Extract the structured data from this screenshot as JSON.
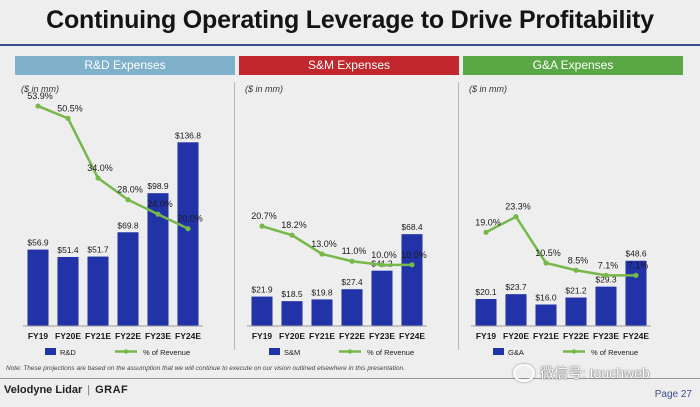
{
  "title": "Continuing Operating Leverage to Drive Profitability",
  "chart_data": [
    {
      "type": "bar",
      "header": "R&D Expenses",
      "header_color": "#7fb1cb",
      "unit": "($ in mm)",
      "categories": [
        "FY19",
        "FY20E",
        "FY21E",
        "FY22E",
        "FY23E",
        "FY24E"
      ],
      "bar_values": [
        56.9,
        51.4,
        51.7,
        69.8,
        98.9,
        136.8
      ],
      "bar_labels": [
        "$56.9",
        "$51.4",
        "$51.7",
        "$69.8",
        "$98.9",
        "$136.8"
      ],
      "pct_values": [
        53.9,
        50.5,
        34.0,
        28.0,
        24.0,
        20.0
      ],
      "pct_labels": [
        "53.9%",
        "50.5%",
        "34.0%",
        "28.0%",
        "24.0%",
        "20.0%"
      ],
      "bar_series_name": "R&D",
      "line_series_name": "% of Revenue",
      "bar_color": "#2233a8",
      "line_color": "#77b84a",
      "bar_max": 140,
      "pct_range": [
        0,
        60
      ]
    },
    {
      "type": "bar",
      "header": "S&M Expenses",
      "header_color": "#c1272d",
      "unit": "($ in mm)",
      "categories": [
        "FY19",
        "FY20E",
        "FY21E",
        "FY22E",
        "FY23E",
        "FY24E"
      ],
      "bar_values": [
        21.9,
        18.5,
        19.8,
        27.4,
        41.2,
        68.4
      ],
      "bar_labels": [
        "$21.9",
        "$18.5",
        "$19.8",
        "$27.4",
        "$41.2",
        "$68.4"
      ],
      "pct_values": [
        20.7,
        18.2,
        13.0,
        11.0,
        10.0,
        10.0
      ],
      "pct_labels": [
        "20.7%",
        "18.2%",
        "13.0%",
        "11.0%",
        "10.0%",
        "10.0%"
      ],
      "bar_series_name": "S&M",
      "line_series_name": "% of Revenue",
      "bar_color": "#2233a8",
      "line_color": "#77b84a",
      "bar_max": 140,
      "pct_range": [
        0,
        60
      ]
    },
    {
      "type": "bar",
      "header": "G&A Expenses",
      "header_color": "#5aa845",
      "unit": "($ in mm)",
      "categories": [
        "FY19",
        "FY20E",
        "FY21E",
        "FY22E",
        "FY23E",
        "FY24E"
      ],
      "bar_values": [
        20.1,
        23.7,
        16.0,
        21.2,
        29.3,
        48.6
      ],
      "bar_labels": [
        "$20.1",
        "$23.7",
        "$16.0",
        "$21.2",
        "$29.3",
        "$48.6"
      ],
      "pct_values": [
        19.0,
        23.3,
        10.5,
        8.5,
        7.1,
        7.1
      ],
      "pct_labels": [
        "19.0%",
        "23.3%",
        "10.5%",
        "8.5%",
        "7.1%",
        "7.1%"
      ],
      "bar_series_name": "G&A",
      "line_series_name": "% of Revenue",
      "bar_color": "#2233a8",
      "line_color": "#77b84a",
      "bar_max": 140,
      "pct_range": [
        0,
        60
      ]
    }
  ],
  "footnote": "Note: These projections are based on the assumption that we will continue to execute on our vision outlined elsewhere in this presentation.",
  "footer": {
    "logo": "Velodyne Lidar",
    "separator": "|",
    "partner": "GRAF",
    "page": "Page 27"
  },
  "watermark": "微信号: touchweb"
}
